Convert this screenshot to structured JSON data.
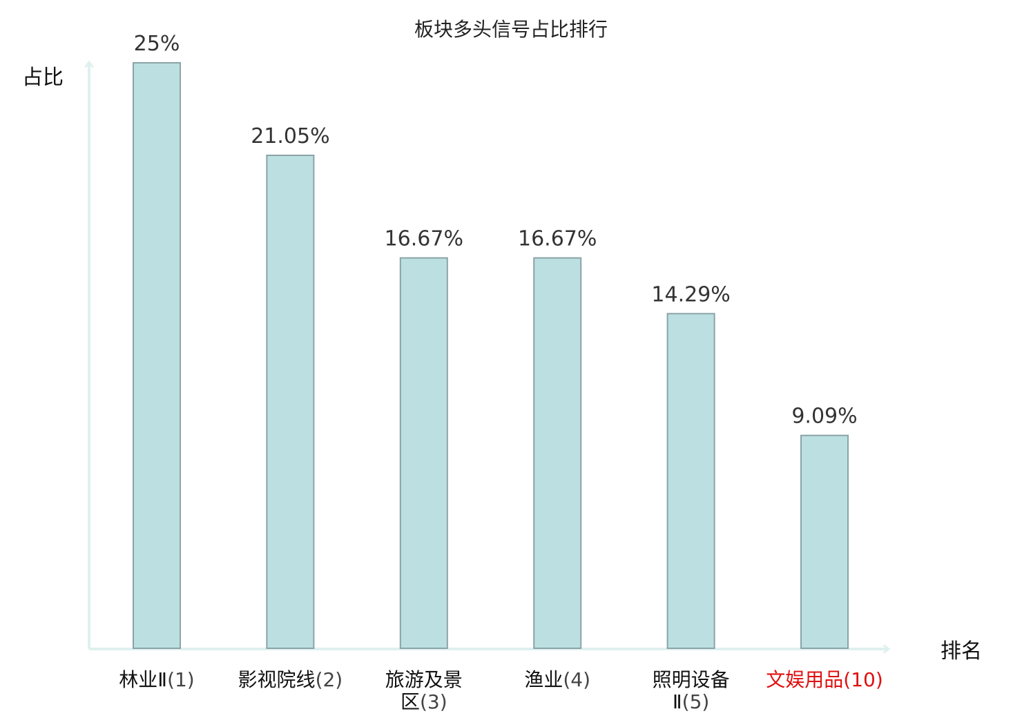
{
  "chart_data": {
    "type": "bar",
    "title": "板块多头信号占比排行",
    "ylabel": "占比",
    "xlabel": "排名",
    "ylim": [
      0,
      25
    ],
    "grid": false,
    "categories": [
      {
        "name": "林业Ⅱ",
        "rank": "(1)",
        "highlight": false
      },
      {
        "name": "影视院线",
        "rank": "(2)",
        "highlight": false
      },
      {
        "name": "旅游及景区",
        "rank": "(3)",
        "highlight": false
      },
      {
        "name": "渔业",
        "rank": "(4)",
        "highlight": false
      },
      {
        "name": "照明设备Ⅱ",
        "rank": "(5)",
        "highlight": false
      },
      {
        "name": "文娱用品",
        "rank": "(10)",
        "highlight": true
      }
    ],
    "values": [
      25,
      21.05,
      16.67,
      16.67,
      14.29,
      9.09
    ],
    "value_labels": [
      "25%",
      "21.05%",
      "16.67%",
      "16.67%",
      "14.29%",
      "9.09%"
    ],
    "colors": {
      "bar_fill": "#bce0e2",
      "bar_stroke": "#8aa3a6",
      "axis": "#dff1ee",
      "label_normal": "#111111",
      "rank_normal": "#444444",
      "label_highlight": "#e01010"
    }
  }
}
